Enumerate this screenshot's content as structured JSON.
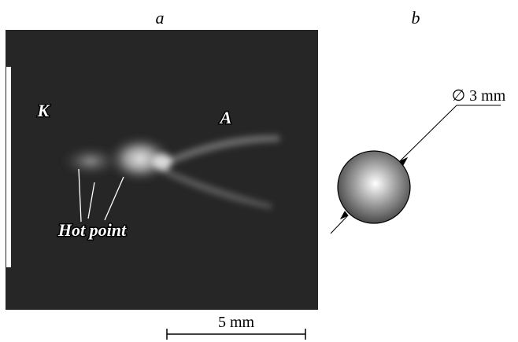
{
  "panels": [
    {
      "label": "a",
      "annotations": [
        "K",
        "A",
        "Hot point"
      ],
      "scale_bar": "5 mm"
    },
    {
      "label": "b",
      "dimension": "∅ 3 mm"
    }
  ]
}
